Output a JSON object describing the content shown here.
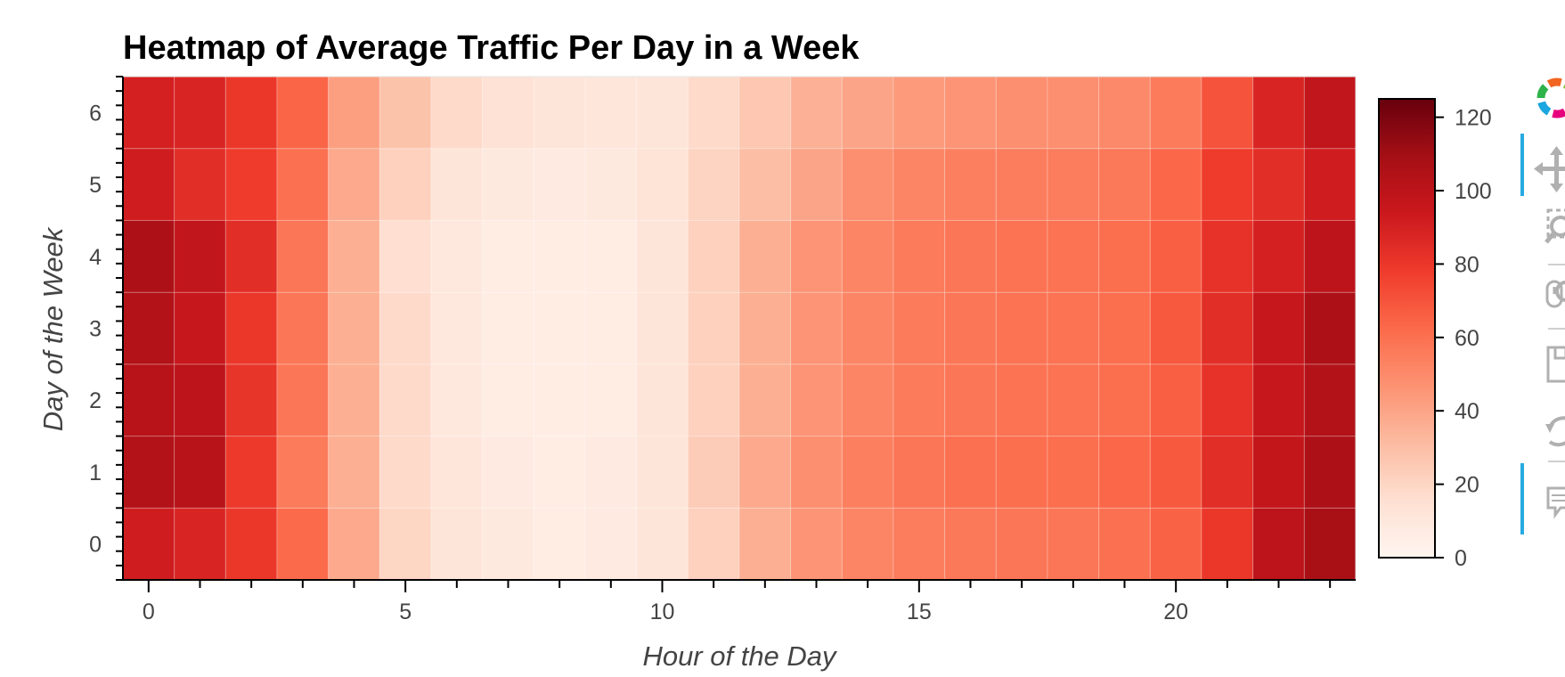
{
  "chart_data": {
    "type": "heatmap",
    "title": "Heatmap of Average Traffic Per Day in a Week",
    "xlabel": "Hour of the Day",
    "ylabel": "Day of the Week",
    "x": [
      0,
      1,
      2,
      3,
      4,
      5,
      6,
      7,
      8,
      9,
      10,
      11,
      12,
      13,
      14,
      15,
      16,
      17,
      18,
      19,
      20,
      21,
      22,
      23
    ],
    "y": [
      0,
      1,
      2,
      3,
      4,
      5,
      6
    ],
    "xlim": [
      -0.5,
      23.5
    ],
    "ylim": [
      -0.5,
      6.5
    ],
    "x_ticks": [
      0,
      5,
      10,
      15,
      20
    ],
    "y_ticks": [
      0,
      1,
      2,
      3,
      4,
      5,
      6
    ],
    "colorbar": {
      "min": 0,
      "max": 125,
      "ticks": [
        0,
        20,
        40,
        60,
        80,
        100,
        120
      ]
    },
    "colormap": [
      "#fff5f0",
      "#fee0d2",
      "#fcbba1",
      "#fc9272",
      "#fb6a4a",
      "#ef3b2c",
      "#cb181d",
      "#a50f15",
      "#67000d"
    ],
    "values": [
      [
        92,
        88,
        80,
        62,
        38,
        20,
        12,
        9,
        7,
        8,
        12,
        22,
        36,
        46,
        52,
        55,
        57,
        58,
        58,
        60,
        65,
        80,
        100,
        108
      ],
      [
        104,
        102,
        79,
        56,
        36,
        18,
        11,
        8,
        7,
        8,
        12,
        24,
        38,
        48,
        54,
        58,
        60,
        61,
        61,
        63,
        68,
        84,
        97,
        106
      ],
      [
        102,
        100,
        81,
        58,
        36,
        18,
        10,
        7,
        6,
        7,
        12,
        22,
        36,
        46,
        52,
        56,
        58,
        59,
        59,
        61,
        66,
        82,
        96,
        104
      ],
      [
        104,
        96,
        80,
        58,
        36,
        18,
        10,
        7,
        6,
        7,
        12,
        22,
        36,
        46,
        52,
        56,
        58,
        59,
        59,
        61,
        68,
        84,
        96,
        106
      ],
      [
        106,
        98,
        84,
        58,
        36,
        16,
        10,
        7,
        6,
        7,
        12,
        22,
        36,
        46,
        52,
        56,
        58,
        59,
        59,
        61,
        66,
        82,
        90,
        100
      ],
      [
        92,
        84,
        78,
        60,
        38,
        22,
        12,
        9,
        8,
        9,
        13,
        21,
        30,
        40,
        48,
        52,
        54,
        55,
        55,
        57,
        63,
        78,
        84,
        92
      ],
      [
        90,
        88,
        80,
        64,
        42,
        28,
        18,
        14,
        12,
        11,
        12,
        18,
        26,
        35,
        40,
        44,
        46,
        48,
        48,
        50,
        56,
        70,
        88,
        98
      ]
    ]
  },
  "toolbar": {
    "tools": [
      {
        "name": "logo",
        "icon": "bokeh-logo-icon",
        "active": false
      },
      {
        "name": "pan",
        "icon": "pan-icon",
        "active": true
      },
      {
        "name": "box-zoom",
        "icon": "box-zoom-icon",
        "active": false
      },
      {
        "name": "wheel-zoom",
        "icon": "wheel-zoom-icon",
        "active": false
      },
      {
        "name": "save",
        "icon": "save-icon",
        "active": false
      },
      {
        "name": "reset",
        "icon": "reset-icon",
        "active": false
      },
      {
        "name": "hover",
        "icon": "hover-icon",
        "active": true
      }
    ],
    "active_color": "#26aae1",
    "icon_color": "#b0b0b0"
  }
}
